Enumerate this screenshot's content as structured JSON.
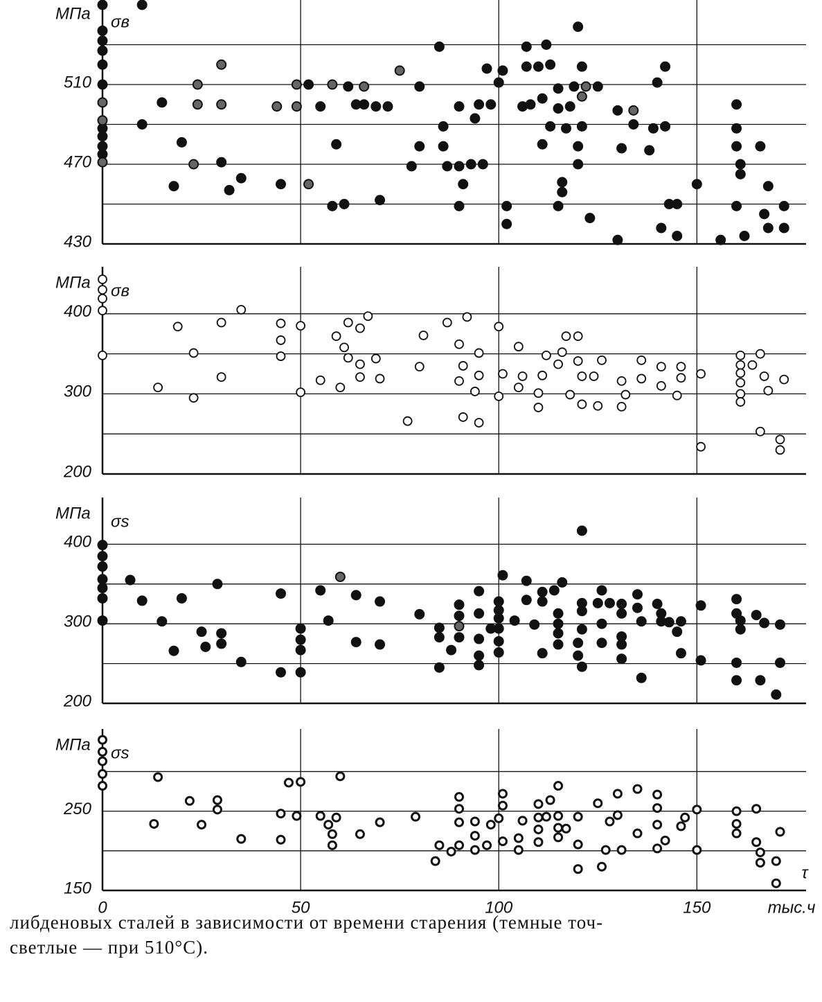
{
  "chart_data": [
    {
      "type": "scatter",
      "ylabel": "МПа",
      "symbol": "σв",
      "xlim": [
        0,
        180
      ],
      "xticks": [
        0,
        50,
        100,
        150
      ],
      "ylim": [
        430,
        550
      ],
      "yticks": [
        430,
        470,
        510
      ],
      "ygrid": [
        450,
        490,
        530
      ],
      "series": [
        {
          "marker": "filled",
          "color": "#111111",
          "x": [
            0,
            0,
            0,
            0,
            0,
            0,
            0,
            0,
            0,
            0,
            10,
            10,
            15,
            20,
            18,
            30,
            32,
            35,
            45,
            52,
            55,
            58,
            59,
            61,
            62,
            64,
            66,
            69,
            70,
            72,
            78,
            80,
            80,
            85,
            86,
            86,
            87,
            90,
            90,
            90,
            91,
            93,
            94,
            95,
            96,
            98,
            97,
            100,
            101,
            102,
            102,
            106,
            107,
            107,
            108,
            110,
            111,
            111,
            112,
            113,
            113,
            115,
            115,
            115,
            116,
            116,
            118,
            117,
            119,
            120,
            120,
            120,
            121,
            121,
            123,
            125,
            130,
            130,
            131,
            134,
            138,
            139,
            140,
            141,
            142,
            142,
            143,
            145,
            145,
            150,
            156,
            160,
            160,
            160,
            161,
            161,
            160,
            162,
            166,
            168,
            167,
            172,
            168,
            172
          ],
          "values": [
            550,
            537,
            532,
            527,
            520,
            510,
            488,
            484,
            479,
            475,
            550,
            490,
            501,
            481,
            459,
            471,
            457,
            463,
            460,
            510,
            499,
            449,
            480,
            450,
            509,
            500,
            500,
            499,
            452,
            499,
            469,
            509,
            479,
            529,
            479,
            489,
            469,
            469,
            449,
            499,
            460,
            470,
            493,
            500,
            470,
            500,
            518,
            511,
            517,
            449,
            440,
            499,
            529,
            519,
            500,
            519,
            480,
            503,
            530,
            489,
            520,
            498,
            508,
            449,
            456,
            461,
            499,
            488,
            509,
            539,
            479,
            470,
            519,
            489,
            443,
            509,
            432,
            497,
            478,
            490,
            477,
            488,
            511,
            438,
            519,
            489,
            450,
            434,
            450,
            460,
            432,
            500,
            488,
            479,
            470,
            465,
            449,
            434,
            479,
            459,
            445,
            449,
            438,
            438
          ]
        },
        {
          "marker": "shaded",
          "color": "#666666",
          "x": [
            0,
            0,
            0,
            24,
            24,
            23,
            30,
            30,
            44,
            49,
            49,
            52,
            58,
            66,
            75,
            121,
            122,
            134
          ],
          "values": [
            501,
            492,
            471,
            510,
            500,
            470,
            520,
            500,
            499,
            510,
            499,
            460,
            510,
            509,
            517,
            504,
            509,
            497
          ]
        }
      ]
    },
    {
      "type": "scatter",
      "ylabel": "МПа",
      "symbol": "σв",
      "xlim": [
        0,
        180
      ],
      "xticks": [
        0,
        50,
        100,
        150
      ],
      "ylim": [
        200,
        450
      ],
      "yticks": [
        200,
        300,
        400
      ],
      "ygrid": [
        250,
        350
      ],
      "series": [
        {
          "marker": "open",
          "color": "#111111",
          "x": [
            0,
            0,
            0,
            0,
            0,
            14,
            19,
            23,
            23,
            30,
            30,
            35,
            45,
            45,
            45,
            50,
            50,
            55,
            59,
            61,
            60,
            62,
            62,
            65,
            65,
            65,
            67,
            69,
            70,
            77,
            80,
            81,
            87,
            90,
            91,
            91,
            90,
            92,
            94,
            95,
            95,
            95,
            100,
            100,
            101,
            105,
            106,
            105,
            110,
            110,
            111,
            112,
            115,
            116,
            117,
            118,
            120,
            120,
            121,
            121,
            124,
            125,
            126,
            131,
            131,
            132,
            136,
            136,
            141,
            141,
            145,
            146,
            146,
            151,
            151,
            161,
            161,
            161,
            161,
            161,
            161,
            164,
            166,
            167,
            168,
            166,
            172,
            171,
            171
          ],
          "values": [
            443,
            430,
            419,
            404,
            348,
            308,
            384,
            351,
            295,
            389,
            321,
            405,
            388,
            367,
            347,
            302,
            385,
            317,
            372,
            358,
            308,
            345,
            389,
            337,
            321,
            382,
            397,
            344,
            319,
            266,
            334,
            373,
            389,
            362,
            271,
            335,
            316,
            396,
            303,
            264,
            351,
            323,
            384,
            297,
            325,
            359,
            322,
            308,
            301,
            283,
            323,
            348,
            337,
            352,
            372,
            299,
            372,
            341,
            322,
            287,
            322,
            285,
            342,
            284,
            316,
            299,
            319,
            342,
            334,
            310,
            298,
            334,
            320,
            234,
            325,
            348,
            336,
            326,
            314,
            300,
            290,
            336,
            350,
            322,
            304,
            253,
            318,
            243,
            230
          ]
        }
      ]
    },
    {
      "type": "scatter",
      "ylabel": "МПа",
      "symbol": "σs",
      "xlim": [
        0,
        180
      ],
      "xticks": [
        0,
        50,
        100,
        150
      ],
      "ylim": [
        200,
        450
      ],
      "yticks": [
        200,
        300,
        400
      ],
      "ygrid": [
        250,
        350
      ],
      "series": [
        {
          "marker": "filled",
          "color": "#111111",
          "x": [
            0,
            0,
            0,
            0,
            0,
            0,
            0,
            7,
            10,
            15,
            18,
            20,
            25,
            26,
            29,
            30,
            30,
            35,
            45,
            45,
            50,
            50,
            50,
            50,
            55,
            57,
            64,
            64,
            70,
            70,
            80,
            85,
            85,
            85,
            88,
            90,
            90,
            90,
            95,
            95,
            95,
            95,
            95,
            98,
            100,
            100,
            100,
            100,
            100,
            100,
            101,
            104,
            107,
            107,
            109,
            111,
            111,
            111,
            114,
            115,
            115,
            115,
            115,
            116,
            120,
            120,
            121,
            121,
            121,
            121,
            121,
            126,
            126,
            126,
            125,
            128,
            131,
            131,
            131,
            131,
            131,
            135,
            135,
            136,
            136,
            140,
            141,
            141,
            143,
            145,
            146,
            146,
            151,
            151,
            160,
            160,
            161,
            161,
            160,
            160,
            165,
            166,
            167,
            171,
            171,
            170
          ],
          "values": [
            399,
            385,
            372,
            356,
            345,
            332,
            304,
            355,
            329,
            303,
            266,
            332,
            290,
            271,
            350,
            288,
            275,
            252,
            239,
            338,
            294,
            280,
            267,
            239,
            342,
            304,
            336,
            277,
            274,
            328,
            312,
            295,
            283,
            245,
            267,
            283,
            324,
            310,
            341,
            313,
            281,
            260,
            248,
            294,
            328,
            317,
            307,
            294,
            278,
            264,
            361,
            304,
            330,
            354,
            299,
            340,
            328,
            263,
            342,
            300,
            288,
            274,
            313,
            352,
            276,
            260,
            246,
            417,
            316,
            326,
            293,
            342,
            276,
            300,
            326,
            326,
            325,
            313,
            284,
            274,
            256,
            337,
            320,
            303,
            232,
            325,
            313,
            303,
            302,
            290,
            263,
            303,
            323,
            254,
            331,
            313,
            304,
            293,
            251,
            229,
            311,
            229,
            301,
            299,
            251,
            211
          ]
        },
        {
          "marker": "shaded",
          "color": "#666666",
          "x": [
            60,
            90
          ],
          "values": [
            359,
            297
          ]
        }
      ]
    },
    {
      "type": "scatter",
      "ylabel": "МПа",
      "symbol": "σs",
      "xlabel": "τ",
      "xunit": "тыс.ч",
      "xlim": [
        0,
        180
      ],
      "xticks": [
        0,
        50,
        100,
        150
      ],
      "ylim": [
        150,
        345
      ],
      "yticks": [
        150,
        250
      ],
      "ygrid": [
        200,
        300
      ],
      "series": [
        {
          "marker": "ring",
          "color": "#111111",
          "x": [
            0,
            0,
            0,
            0,
            0,
            14,
            13,
            22,
            25,
            29,
            29,
            35,
            45,
            45,
            47,
            50,
            49,
            55,
            57,
            58,
            58,
            59,
            60,
            65,
            70,
            79,
            85,
            84,
            88,
            90,
            90,
            90,
            90,
            94,
            94,
            94,
            97,
            98,
            100,
            101,
            101,
            101,
            105,
            105,
            106,
            110,
            110,
            110,
            110,
            112,
            113,
            115,
            115,
            115,
            115,
            117,
            120,
            120,
            120,
            125,
            126,
            127,
            128,
            130,
            130,
            131,
            135,
            135,
            140,
            140,
            140,
            140,
            142,
            146,
            147,
            150,
            150,
            160,
            160,
            160,
            165,
            165,
            166,
            166,
            170,
            171,
            170
          ],
          "values": [
            340,
            325,
            313,
            297,
            282,
            293,
            234,
            263,
            233,
            264,
            252,
            215,
            247,
            214,
            286,
            287,
            244,
            244,
            233,
            221,
            207,
            242,
            294,
            221,
            236,
            243,
            207,
            187,
            199,
            207,
            236,
            253,
            268,
            237,
            219,
            201,
            207,
            233,
            241,
            257,
            272,
            212,
            216,
            201,
            238,
            242,
            259,
            227,
            211,
            243,
            264,
            282,
            244,
            229,
            217,
            228,
            243,
            177,
            208,
            260,
            180,
            201,
            237,
            272,
            245,
            201,
            278,
            222,
            271,
            254,
            233,
            203,
            213,
            231,
            242,
            252,
            201,
            250,
            234,
            222,
            253,
            211,
            198,
            185,
            187,
            224,
            159
          ]
        }
      ]
    }
  ],
  "caption": [
    "либденовых сталей в зависимости от времени старения (темные точ-",
    "светлые — при 510°С)."
  ]
}
